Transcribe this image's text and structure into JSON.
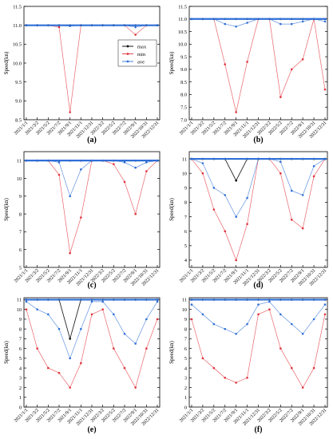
{
  "figure": {
    "panel_labels": [
      "(a)",
      "(b)",
      "(c)",
      "(d)",
      "(e)",
      "(f)"
    ],
    "colors": {
      "max": "#000000",
      "min": "#e0333b",
      "ave": "#2f6fd6",
      "bar": "#2f6fd6"
    }
  },
  "chart_data": [
    {
      "type": "line",
      "panel": "(a)",
      "ylabel": "Speed(kn)",
      "ylim": [
        8.5,
        11.5
      ],
      "yticks": [
        8.5,
        9.0,
        9.5,
        10.0,
        10.5,
        11.0,
        11.5
      ],
      "xticks": [
        "2021/1/1",
        "2021/3/2",
        "2021/5/2",
        "2021/7/2",
        "2021/9/1",
        "2021/11/1",
        "2021/12/31",
        "2022/3/2",
        "2022/5/2",
        "2022/7/2",
        "2022/9/1",
        "2022/10/31",
        "2022/12/31"
      ],
      "legend": [
        "max",
        "min",
        "ave"
      ],
      "legend_position": "right",
      "grid": false,
      "series": [
        {
          "name": "max",
          "values": [
            11.0,
            11.0,
            11.0,
            11.0,
            11.0,
            11.0,
            11.0,
            11.0,
            11.0,
            11.0,
            11.0,
            11.0,
            11.0
          ]
        },
        {
          "name": "min",
          "values": [
            11.0,
            11.0,
            11.0,
            10.95,
            8.7,
            11.0,
            11.0,
            11.0,
            11.0,
            11.0,
            10.75,
            11.0,
            11.0
          ]
        },
        {
          "name": "ave",
          "values": [
            11.0,
            11.0,
            11.0,
            11.0,
            10.98,
            11.0,
            11.0,
            11.0,
            11.0,
            11.0,
            10.95,
            11.0,
            11.0
          ]
        }
      ]
    },
    {
      "type": "line",
      "panel": "(b)",
      "ylabel": "Speed(kn)",
      "ylim": [
        7.0,
        11.5
      ],
      "yticks": [
        7.0,
        7.5,
        8.0,
        8.5,
        9.0,
        9.5,
        10.0,
        10.5,
        11.0,
        11.5
      ],
      "xticks": [
        "2021/1/1",
        "2021/3/2",
        "2021/5/2",
        "2021/7/2",
        "2021/9/1",
        "2021/11/1",
        "2021/12/31",
        "2022/3/2",
        "2022/5/2",
        "2022/7/2",
        "2022/9/1",
        "2022/10/31",
        "2022/12/31"
      ],
      "grid": false,
      "series": [
        {
          "name": "max",
          "values": [
            11.0,
            11.0,
            11.0,
            11.0,
            11.0,
            11.0,
            11.0,
            11.0,
            11.0,
            11.0,
            11.0,
            11.0,
            11.0
          ]
        },
        {
          "name": "min",
          "values": [
            11.0,
            11.0,
            11.0,
            9.2,
            7.3,
            9.3,
            11.0,
            11.0,
            7.9,
            9.0,
            9.4,
            11.0,
            8.2
          ]
        },
        {
          "name": "ave",
          "values": [
            11.0,
            11.0,
            11.0,
            10.8,
            10.7,
            10.85,
            11.0,
            11.0,
            10.8,
            10.8,
            10.9,
            11.0,
            10.9
          ]
        }
      ]
    },
    {
      "type": "line",
      "panel": "(c)",
      "ylabel": "Speed(kn)",
      "ylim": [
        5,
        11.5
      ],
      "yticks": [
        5,
        6,
        7,
        8,
        9,
        10,
        11
      ],
      "xticks": [
        "2021/1/1",
        "2021/3/2",
        "2021/5/2",
        "2021/7/2",
        "2021/9/1",
        "2021/11/1",
        "2021/12/31",
        "2022/3/2",
        "2022/5/2",
        "2022/7/2",
        "2022/9/1",
        "2022/10/31",
        "2022/12/31"
      ],
      "grid": false,
      "series": [
        {
          "name": "max",
          "values": [
            11.0,
            11.0,
            11.0,
            11.0,
            11.0,
            11.0,
            11.0,
            11.0,
            11.0,
            11.0,
            11.0,
            11.0,
            11.0
          ]
        },
        {
          "name": "min",
          "values": [
            11.0,
            11.0,
            11.0,
            10.2,
            5.8,
            7.8,
            11.0,
            11.0,
            10.8,
            9.8,
            8.0,
            10.4,
            11.0
          ]
        },
        {
          "name": "ave",
          "values": [
            11.0,
            11.0,
            11.0,
            10.9,
            9.0,
            10.5,
            11.0,
            11.0,
            11.0,
            10.9,
            10.6,
            10.9,
            11.0
          ]
        }
      ]
    },
    {
      "type": "line",
      "panel": "(d)",
      "ylabel": "Speed(kn)",
      "ylim": [
        3.5,
        11.5
      ],
      "yticks": [
        4,
        5,
        6,
        7,
        8,
        9,
        10,
        11
      ],
      "xticks": [
        "2021/1/1",
        "2021/3/2",
        "2021/5/2",
        "2021/7/2",
        "2021/9/1",
        "2021/11/1",
        "2021/12/31",
        "2022/3/2",
        "2022/5/2",
        "2022/7/2",
        "2022/9/1",
        "2022/10/31",
        "2022/12/31"
      ],
      "grid": false,
      "series": [
        {
          "name": "max",
          "values": [
            11.0,
            11.0,
            11.0,
            11.0,
            9.5,
            11.0,
            11.0,
            11.0,
            11.0,
            11.0,
            11.0,
            11.0,
            11.0
          ]
        },
        {
          "name": "min",
          "values": [
            11.0,
            10.0,
            7.5,
            6.0,
            4.0,
            6.5,
            11.0,
            11.0,
            10.0,
            6.8,
            6.2,
            9.8,
            11.0
          ]
        },
        {
          "name": "ave",
          "values": [
            11.0,
            10.7,
            9.0,
            8.5,
            7.0,
            8.3,
            11.0,
            11.0,
            10.8,
            8.8,
            8.5,
            10.5,
            11.0
          ]
        }
      ]
    },
    {
      "type": "line",
      "panel": "(e)",
      "ylabel": "Speed(kn)",
      "ylim": [
        0,
        11.2
      ],
      "yticks": [
        0,
        1,
        2,
        3,
        4,
        5,
        6,
        7,
        8,
        9,
        10,
        11
      ],
      "xticks": [
        "2021/1/1",
        "2021/3/2",
        "2021/5/2",
        "2021/7/2",
        "2021/9/1",
        "2021/11/1",
        "2021/12/31",
        "2022/3/2",
        "2022/5/2",
        "2022/7/2",
        "2022/9/1",
        "2022/10/31",
        "2022/12/31"
      ],
      "grid": false,
      "series": [
        {
          "name": "max",
          "values": [
            11.0,
            11.0,
            11.0,
            11.0,
            7.0,
            11.0,
            11.0,
            11.0,
            11.0,
            11.0,
            11.0,
            11.0,
            11.0
          ]
        },
        {
          "name": "min",
          "values": [
            10.0,
            6.0,
            4.0,
            3.5,
            2.0,
            4.5,
            9.5,
            10.0,
            6.0,
            4.0,
            2.0,
            6.0,
            9.0
          ]
        },
        {
          "name": "ave",
          "values": [
            10.8,
            10.0,
            9.5,
            8.0,
            5.0,
            8.0,
            10.8,
            10.8,
            9.5,
            7.5,
            6.5,
            9.0,
            10.8
          ]
        }
      ]
    },
    {
      "type": "line",
      "panel": "(f)",
      "ylabel": "Speed(kn)",
      "ylim": [
        0,
        11.2
      ],
      "yticks": [
        0,
        1,
        2,
        3,
        4,
        5,
        6,
        7,
        8,
        9,
        10,
        11
      ],
      "xticks": [
        "2021/1/1",
        "2021/3/2",
        "2021/5/2",
        "2021/7/2",
        "2021/9/1",
        "2021/11/1",
        "2021/12/31",
        "2022/3/2",
        "2022/5/2",
        "2022/7/2",
        "2022/9/1",
        "2022/10/31",
        "2022/12/31"
      ],
      "grid": false,
      "series": [
        {
          "name": "max",
          "values": [
            11.0,
            11.0,
            11.0,
            11.0,
            11.0,
            11.0,
            11.0,
            11.0,
            11.0,
            11.0,
            11.0,
            11.0,
            11.0
          ]
        },
        {
          "name": "min",
          "values": [
            9.0,
            5.0,
            4.0,
            3.0,
            2.5,
            3.0,
            9.5,
            10.0,
            6.0,
            4.0,
            2.0,
            4.0,
            9.5
          ]
        },
        {
          "name": "ave",
          "values": [
            10.5,
            9.5,
            8.5,
            8.0,
            7.5,
            8.5,
            10.5,
            10.8,
            9.5,
            8.5,
            7.5,
            9.0,
            10.5
          ]
        }
      ]
    }
  ]
}
